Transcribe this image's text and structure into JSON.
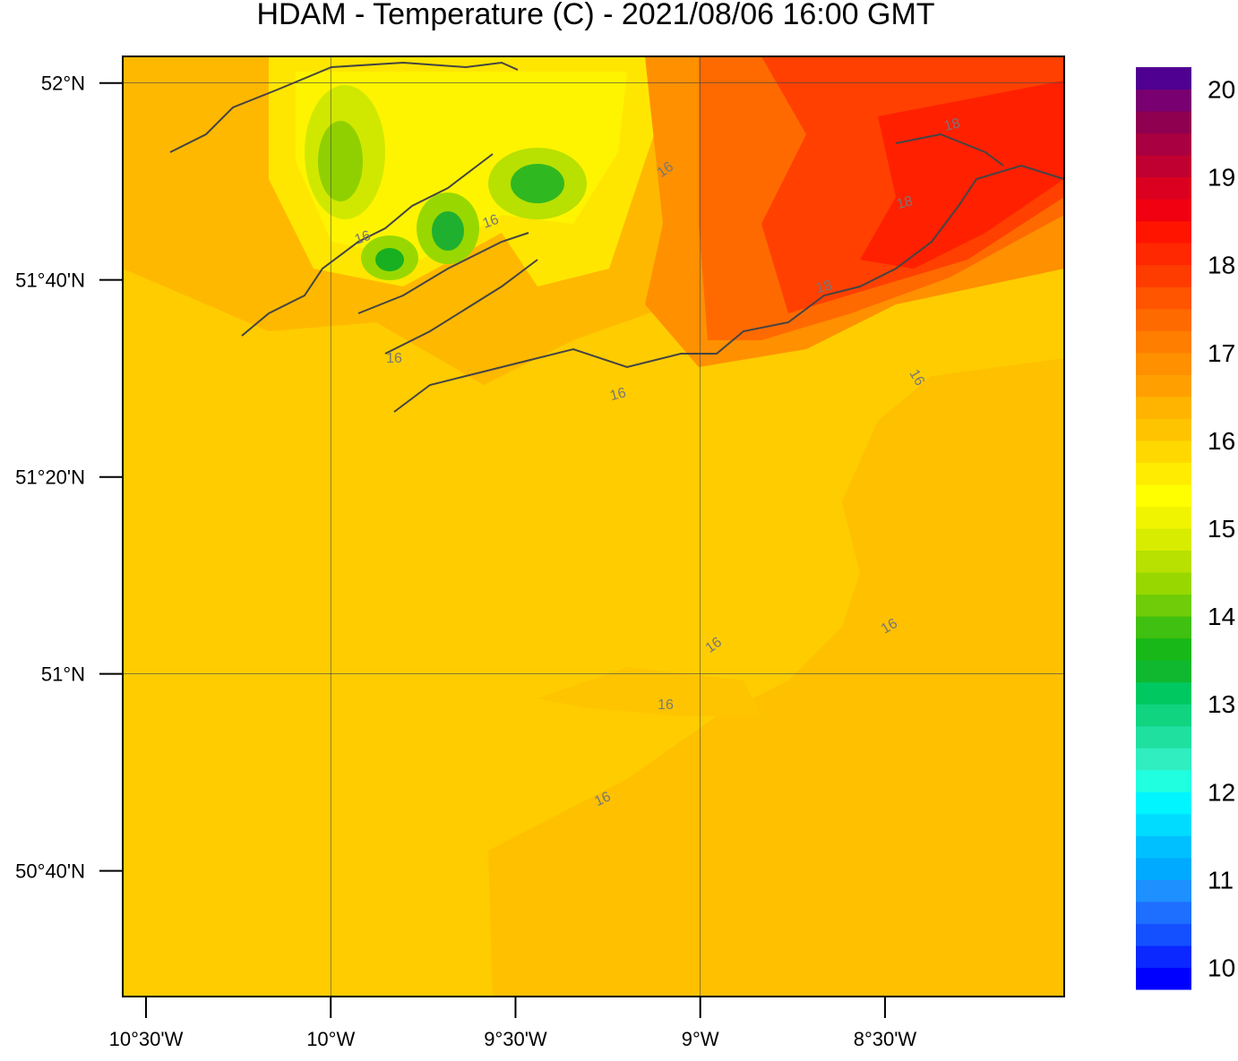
{
  "title": "HDAM - Temperature (C)  -  2021/08/06  16:00 GMT",
  "map": {
    "xlim": [
      -10.563,
      -8.015
    ],
    "ylim": [
      50.454,
      52.045
    ],
    "lon_ticks": [
      {
        "value": -10.5,
        "label": "10°30'W"
      },
      {
        "value": -10,
        "label": "10°W"
      },
      {
        "value": -9.5,
        "label": "9°30'W"
      },
      {
        "value": -9,
        "label": "9°W"
      },
      {
        "value": -8.5,
        "label": "8°30'W"
      }
    ],
    "lat_ticks": [
      {
        "value": 52,
        "label": "52°N"
      },
      {
        "value": 51.6667,
        "label": "51°40'N"
      },
      {
        "value": 51.3333,
        "label": "51°20'N"
      },
      {
        "value": 51,
        "label": "51°N"
      },
      {
        "value": 50.6667,
        "label": "50°40'N"
      }
    ],
    "grid_lons": [
      -10,
      -9
    ],
    "grid_lats": [
      52,
      51
    ],
    "contour_labels": [
      18,
      18,
      18,
      16,
      16,
      16,
      16,
      16,
      16,
      16,
      16,
      16,
      16
    ]
  },
  "colorbar": {
    "lim": [
      9.75,
      20.25
    ],
    "ticks": [
      10,
      11,
      12,
      13,
      14,
      15,
      16,
      17,
      18,
      19,
      20
    ],
    "colors": [
      "#0000ff",
      "#0a28ff",
      "#1450ff",
      "#1e6eff",
      "#1e90ff",
      "#00aaff",
      "#00c0ff",
      "#00dcff",
      "#00f5ff",
      "#20ffe0",
      "#30eec0",
      "#20e0a0",
      "#10d480",
      "#00c860",
      "#10b830",
      "#18b818",
      "#40c010",
      "#70cc08",
      "#98d800",
      "#b8e000",
      "#d8ec00",
      "#f0f400",
      "#ffff00",
      "#ffec00",
      "#ffd800",
      "#ffc400",
      "#ffb400",
      "#ffa000",
      "#ff9000",
      "#ff7e00",
      "#ff6a00",
      "#ff5400",
      "#ff3c00",
      "#ff2800",
      "#ff1400",
      "#f00010",
      "#dc0020",
      "#c00030",
      "#a80040",
      "#900050",
      "#780070",
      "#500090"
    ]
  }
}
